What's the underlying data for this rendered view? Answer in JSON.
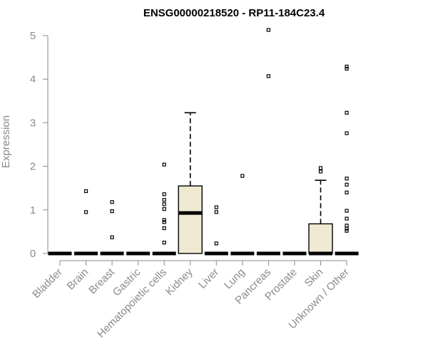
{
  "chart_data": {
    "type": "boxplot",
    "title": "ENSG00000218520 - RP11-184C23.4",
    "ylabel": "Expression",
    "xlabel": "",
    "ylim": [
      0,
      5.2
    ],
    "yticks": [
      "0",
      "1",
      "2",
      "3",
      "4",
      "5"
    ],
    "categories": [
      "Bladder",
      "Brain",
      "Breast",
      "Gastric",
      "Hematopoietic cells",
      "Kidney",
      "Liver",
      "Lung",
      "Pancreas",
      "Prostate",
      "Skin",
      "Unknown / Other"
    ],
    "box_color": "#efe9d1",
    "boxes": [
      {
        "category": "Bladder",
        "q1": 0,
        "median": 0,
        "q3": 0,
        "whisker_low": 0,
        "whisker_high": 0,
        "outliers": []
      },
      {
        "category": "Brain",
        "q1": 0,
        "median": 0,
        "q3": 0,
        "whisker_low": 0,
        "whisker_high": 0,
        "outliers": [
          0.95,
          1.43
        ]
      },
      {
        "category": "Breast",
        "q1": 0,
        "median": 0,
        "q3": 0,
        "whisker_low": 0,
        "whisker_high": 0,
        "outliers": [
          0.37,
          0.97,
          1.18
        ]
      },
      {
        "category": "Gastric",
        "q1": 0,
        "median": 0,
        "q3": 0,
        "whisker_low": 0,
        "whisker_high": 0,
        "outliers": []
      },
      {
        "category": "Hematopoietic cells",
        "q1": 0,
        "median": 0,
        "q3": 0,
        "whisker_low": 0,
        "whisker_high": 0,
        "outliers": [
          0.25,
          0.58,
          0.72,
          0.77,
          1.02,
          1.13,
          1.23,
          1.36,
          2.04
        ]
      },
      {
        "category": "Kidney",
        "q1": 0,
        "median": 0.93,
        "q3": 1.55,
        "whisker_low": 0,
        "whisker_high": 3.23,
        "outliers": []
      },
      {
        "category": "Liver",
        "q1": 0,
        "median": 0,
        "q3": 0,
        "whisker_low": 0,
        "whisker_high": 0,
        "outliers": [
          0.23,
          0.95,
          1.06
        ]
      },
      {
        "category": "Lung",
        "q1": 0,
        "median": 0,
        "q3": 0,
        "whisker_low": 0,
        "whisker_high": 0,
        "outliers": [
          1.78
        ]
      },
      {
        "category": "Pancreas",
        "q1": 0,
        "median": 0,
        "q3": 0,
        "whisker_low": 0,
        "whisker_high": 0,
        "outliers": [
          4.07,
          5.13
        ]
      },
      {
        "category": "Prostate",
        "q1": 0,
        "median": 0,
        "q3": 0,
        "whisker_low": 0,
        "whisker_high": 0,
        "outliers": []
      },
      {
        "category": "Skin",
        "q1": 0,
        "median": 0,
        "q3": 0.68,
        "whisker_low": 0,
        "whisker_high": 1.68,
        "outliers": [
          1.88,
          1.96
        ]
      },
      {
        "category": "Unknown / Other",
        "q1": 0,
        "median": 0,
        "q3": 0,
        "whisker_low": 0,
        "whisker_high": 0,
        "outliers": [
          0.52,
          0.57,
          0.64,
          0.8,
          0.98,
          1.4,
          1.58,
          1.72,
          2.76,
          3.23,
          4.24,
          4.29
        ]
      }
    ],
    "grid": false,
    "legend": "none"
  }
}
